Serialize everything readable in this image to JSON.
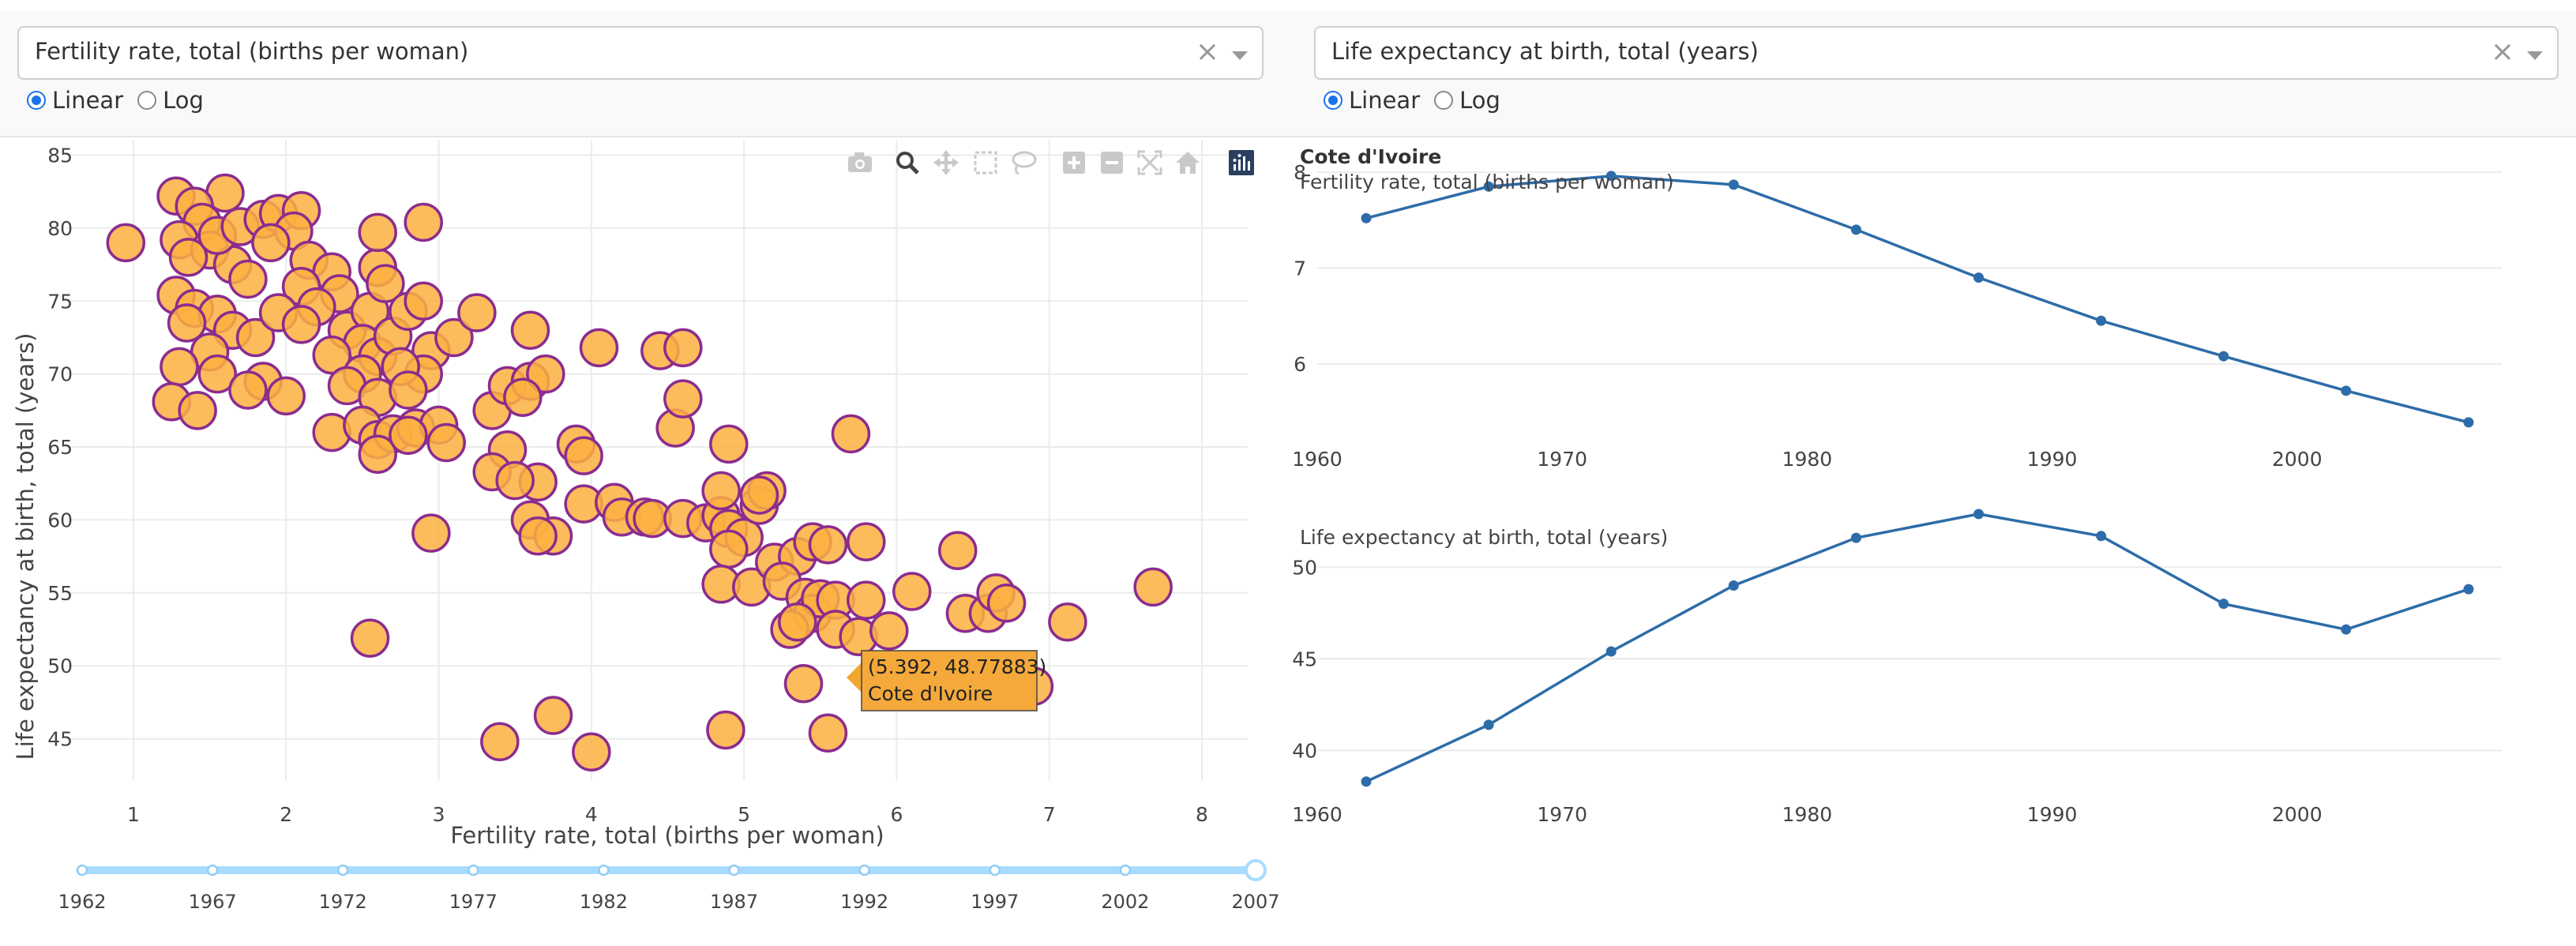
{
  "controls": {
    "x_dropdown": {
      "value": "Fertility rate, total (births per woman)",
      "clear_symbol": "×"
    },
    "y_dropdown": {
      "value": "Life expectancy at birth, total (years)",
      "clear_symbol": "×"
    },
    "x_scale": {
      "options": [
        "Linear",
        "Log"
      ],
      "selected": "Linear"
    },
    "y_scale": {
      "options": [
        "Linear",
        "Log"
      ],
      "selected": "Linear"
    }
  },
  "modebar": {
    "icons": [
      "camera-icon",
      "zoom-icon",
      "pan-icon",
      "box-select-icon",
      "lasso-icon",
      "zoom-in-icon",
      "zoom-out-icon",
      "autoscale-icon",
      "reset-axes-icon",
      "plotly-logo-icon"
    ],
    "accent": "#2a3f5f"
  },
  "scatter": {
    "xlabel": "Fertility rate, total (births per woman)",
    "ylabel": "Life expectancy at birth, total (years)",
    "marker_color": "#fcb040",
    "marker_edge": "#8b2c8f",
    "tooltip": {
      "line1": "(5.392, 48.77883)",
      "line2": "Cote d'Ivoire",
      "x": 5.392,
      "y": 48.77883
    }
  },
  "chart_data": [
    {
      "type": "scatter",
      "title": "",
      "xlabel": "Fertility rate, total (births per woman)",
      "ylabel": "Life expectancy at birth, total (years)",
      "xlim": [
        0.25,
        8.3
      ],
      "ylim": [
        40,
        86
      ],
      "xticks": [
        1,
        2,
        3,
        4,
        5,
        6,
        7,
        8
      ],
      "yticks": [
        45,
        50,
        55,
        60,
        65,
        70,
        75,
        80,
        85
      ],
      "grid": true,
      "points": [
        [
          0.95,
          79
        ],
        [
          1.28,
          82.2
        ],
        [
          1.6,
          82.4
        ],
        [
          1.4,
          81.5
        ],
        [
          1.45,
          80.4
        ],
        [
          1.3,
          79.2
        ],
        [
          1.5,
          78.5
        ],
        [
          1.36,
          78
        ],
        [
          1.65,
          77.5
        ],
        [
          1.75,
          76.5
        ],
        [
          1.28,
          75.4
        ],
        [
          1.4,
          74.5
        ],
        [
          1.55,
          74.1
        ],
        [
          1.35,
          73.5
        ],
        [
          1.65,
          73
        ],
        [
          1.8,
          72.5
        ],
        [
          1.5,
          71.5
        ],
        [
          1.3,
          70.5
        ],
        [
          1.55,
          70
        ],
        [
          1.85,
          69.5
        ],
        [
          1.25,
          68.1
        ],
        [
          1.42,
          67.5
        ],
        [
          1.75,
          68.9
        ],
        [
          2,
          68.5
        ],
        [
          1.55,
          79.5
        ],
        [
          1.7,
          80.1
        ],
        [
          1.85,
          80.6
        ],
        [
          1.95,
          81
        ],
        [
          2.1,
          81.2
        ],
        [
          2.05,
          79.8
        ],
        [
          1.9,
          79
        ],
        [
          2.15,
          77.8
        ],
        [
          2.3,
          77
        ],
        [
          2.1,
          76
        ],
        [
          2.35,
          75.5
        ],
        [
          2.2,
          74.6
        ],
        [
          1.95,
          74.2
        ],
        [
          2.1,
          73.4
        ],
        [
          2.4,
          73
        ],
        [
          2.55,
          74.3
        ],
        [
          2.6,
          77.3
        ],
        [
          2.65,
          76.2
        ],
        [
          2.6,
          79.7
        ],
        [
          2.9,
          80.4
        ],
        [
          2.5,
          72.1
        ],
        [
          2.3,
          71.3
        ],
        [
          2.6,
          71.2
        ],
        [
          2.7,
          72.6
        ],
        [
          2.8,
          74.3
        ],
        [
          2.9,
          75
        ],
        [
          2.95,
          71.6
        ],
        [
          2.9,
          70
        ],
        [
          2.75,
          70.5
        ],
        [
          2.5,
          70
        ],
        [
          2.4,
          69.2
        ],
        [
          2.6,
          68.4
        ],
        [
          2.8,
          68.9
        ],
        [
          2.3,
          66
        ],
        [
          2.5,
          66.5
        ],
        [
          2.6,
          65.5
        ],
        [
          2.7,
          65.9
        ],
        [
          2.85,
          66.3
        ],
        [
          3,
          66.5
        ],
        [
          3.05,
          65.3
        ],
        [
          2.6,
          64.5
        ],
        [
          2.8,
          65.8
        ],
        [
          3.1,
          72.5
        ],
        [
          3.25,
          74.2
        ],
        [
          3.35,
          67.5
        ],
        [
          3.45,
          69.2
        ],
        [
          3.6,
          69.5
        ],
        [
          3.7,
          70
        ],
        [
          3.55,
          68.4
        ],
        [
          3.45,
          64.8
        ],
        [
          3.35,
          63.3
        ],
        [
          3.65,
          62.6
        ],
        [
          3.5,
          62.7
        ],
        [
          3.6,
          73
        ],
        [
          3.6,
          60
        ],
        [
          3.75,
          58.9
        ],
        [
          3.65,
          58.9
        ],
        [
          2.95,
          59.1
        ],
        [
          3.9,
          65.2
        ],
        [
          3.95,
          64.4
        ],
        [
          4.05,
          71.8
        ],
        [
          3.95,
          61.1
        ],
        [
          4.15,
          61.2
        ],
        [
          4.2,
          60.2
        ],
        [
          4.35,
          60.2
        ],
        [
          4.4,
          60.1
        ],
        [
          4.45,
          71.6
        ],
        [
          4.6,
          71.8
        ],
        [
          4.55,
          66.3
        ],
        [
          4.6,
          68.3
        ],
        [
          4.6,
          60.1
        ],
        [
          4.75,
          59.8
        ],
        [
          4.9,
          65.2
        ],
        [
          4.85,
          60.3
        ],
        [
          4.9,
          59.4
        ],
        [
          5,
          58.8
        ],
        [
          4.85,
          62
        ],
        [
          5.1,
          61
        ],
        [
          5.15,
          62
        ],
        [
          5.1,
          61.7
        ],
        [
          4.9,
          58
        ],
        [
          4.85,
          55.6
        ],
        [
          5.05,
          55.4
        ],
        [
          5.2,
          57.1
        ],
        [
          5.35,
          57.5
        ],
        [
          5.45,
          58.5
        ],
        [
          5.55,
          58.3
        ],
        [
          5.25,
          55.8
        ],
        [
          5.4,
          54.7
        ],
        [
          5.45,
          53.6
        ],
        [
          5.3,
          52.5
        ],
        [
          5.5,
          54.6
        ],
        [
          5.6,
          54.5
        ],
        [
          5.35,
          53
        ],
        [
          5.6,
          52.5
        ],
        [
          5.75,
          52
        ],
        [
          5.8,
          54.5
        ],
        [
          5.8,
          58.5
        ],
        [
          5.7,
          65.9
        ],
        [
          5.95,
          52.4
        ],
        [
          6.1,
          55.1
        ],
        [
          6.4,
          57.9
        ],
        [
          6.45,
          53.6
        ],
        [
          6.6,
          53.6
        ],
        [
          6.65,
          55
        ],
        [
          6.72,
          54.3
        ],
        [
          7.12,
          53
        ],
        [
          7.68,
          55.4
        ],
        [
          5.55,
          45.4
        ],
        [
          5.39,
          48.78
        ],
        [
          4.88,
          45.6
        ],
        [
          6.9,
          48.6
        ],
        [
          4,
          44.1
        ],
        [
          3.75,
          46.6
        ],
        [
          3.4,
          44.8
        ],
        [
          2.55,
          51.9
        ]
      ]
    },
    {
      "type": "line",
      "title": "Cote d'Ivoire",
      "subtitle": "Fertility rate, total (births per woman)",
      "x": [
        1962,
        1967,
        1972,
        1977,
        1982,
        1987,
        1992,
        1997,
        2002,
        2007
      ],
      "y": [
        7.52,
        7.85,
        7.96,
        7.87,
        7.4,
        6.9,
        6.45,
        6.08,
        5.72,
        5.39
      ],
      "xlim": [
        1960,
        2009
      ],
      "ylim": [
        5.15,
        8.05
      ],
      "xticks": [
        1960,
        1970,
        1980,
        1990,
        2000
      ],
      "yticks": [
        6,
        7,
        8
      ],
      "color": "#2d6ca8"
    },
    {
      "type": "line",
      "title": "",
      "subtitle": "Life expectancy at birth, total (years)",
      "x": [
        1962,
        1967,
        1972,
        1977,
        1982,
        1987,
        1992,
        1997,
        2002,
        2007
      ],
      "y": [
        38.3,
        41.4,
        45.4,
        49.0,
        51.6,
        52.9,
        51.7,
        48.0,
        46.6,
        48.8
      ],
      "xlim": [
        1960,
        2009
      ],
      "ylim": [
        37.3,
        53.2
      ],
      "xticks": [
        1960,
        1970,
        1980,
        1990,
        2000
      ],
      "yticks": [
        40,
        45,
        50
      ],
      "color": "#2d6ca8"
    }
  ],
  "slider": {
    "years": [
      "1962",
      "1967",
      "1972",
      "1977",
      "1982",
      "1987",
      "1992",
      "1997",
      "2002",
      "2007"
    ],
    "selected": "2007",
    "color": "#a8dcff"
  }
}
